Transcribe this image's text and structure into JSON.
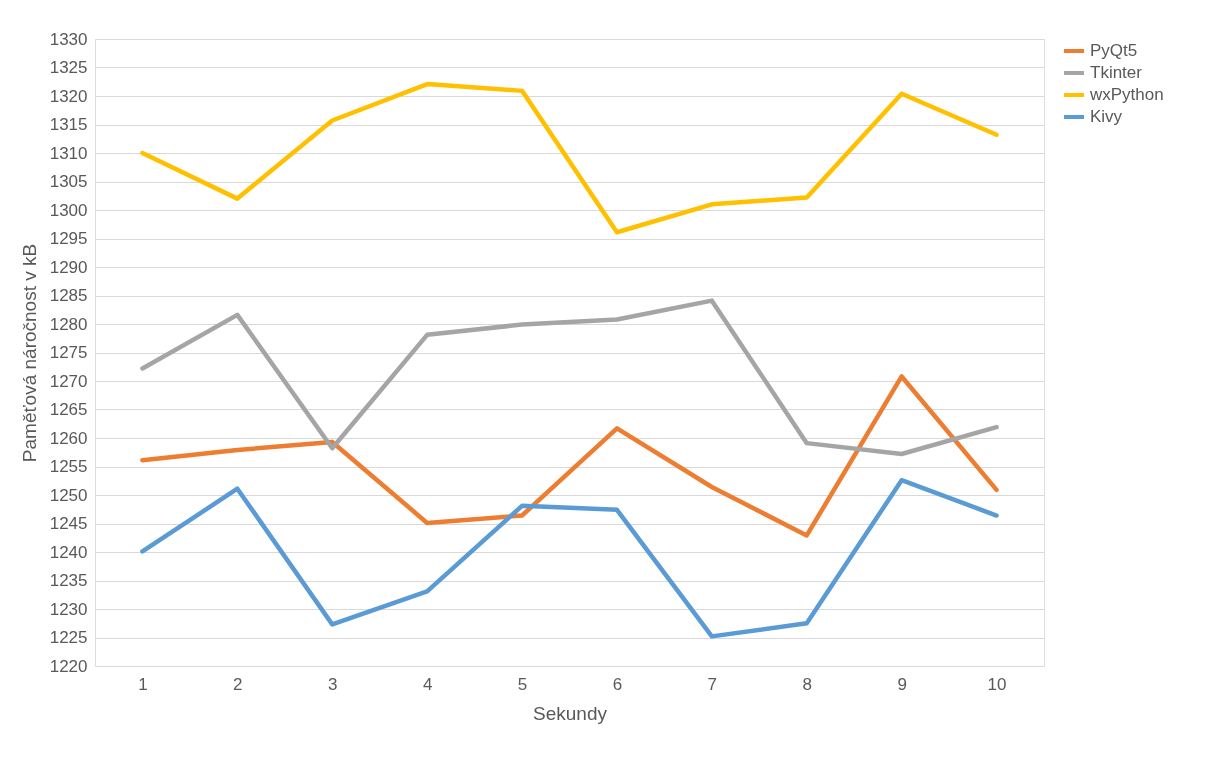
{
  "chart_data": {
    "type": "line",
    "xlabel": "Sekundy",
    "ylabel": "Paměťová náročnost v kB",
    "categories": [
      "1",
      "2",
      "3",
      "4",
      "5",
      "6",
      "7",
      "8",
      "9",
      "10"
    ],
    "series": [
      {
        "name": "PyQt5",
        "color": "#ed7d31",
        "values": [
          1256.1,
          1257.9,
          1259.3,
          1245.1,
          1246.4,
          1261.7,
          1251.4,
          1242.9,
          1270.8,
          1250.9
        ]
      },
      {
        "name": "Tkinter",
        "color": "#a5a5a5",
        "values": [
          1272.2,
          1281.6,
          1258.2,
          1278.1,
          1279.9,
          1280.8,
          1284.1,
          1259.1,
          1257.2,
          1261.9
        ]
      },
      {
        "name": "wxPython",
        "color": "#ffc000",
        "values": [
          1310.0,
          1302.0,
          1315.7,
          1322.1,
          1320.9,
          1296.1,
          1301.0,
          1302.2,
          1320.4,
          1313.2
        ]
      },
      {
        "name": "Kivy",
        "color": "#5b9bd5",
        "values": [
          1240.1,
          1251.1,
          1227.3,
          1233.1,
          1248.1,
          1247.4,
          1225.2,
          1227.5,
          1252.6,
          1246.4
        ]
      }
    ],
    "ylim": [
      1220,
      1330
    ],
    "yticks": [
      1220,
      1225,
      1230,
      1235,
      1240,
      1245,
      1250,
      1255,
      1260,
      1265,
      1270,
      1275,
      1280,
      1285,
      1290,
      1295,
      1300,
      1305,
      1310,
      1315,
      1320,
      1325,
      1330
    ],
    "grid": "y",
    "legend": "right",
    "marker": "none",
    "line_style": "solid"
  }
}
